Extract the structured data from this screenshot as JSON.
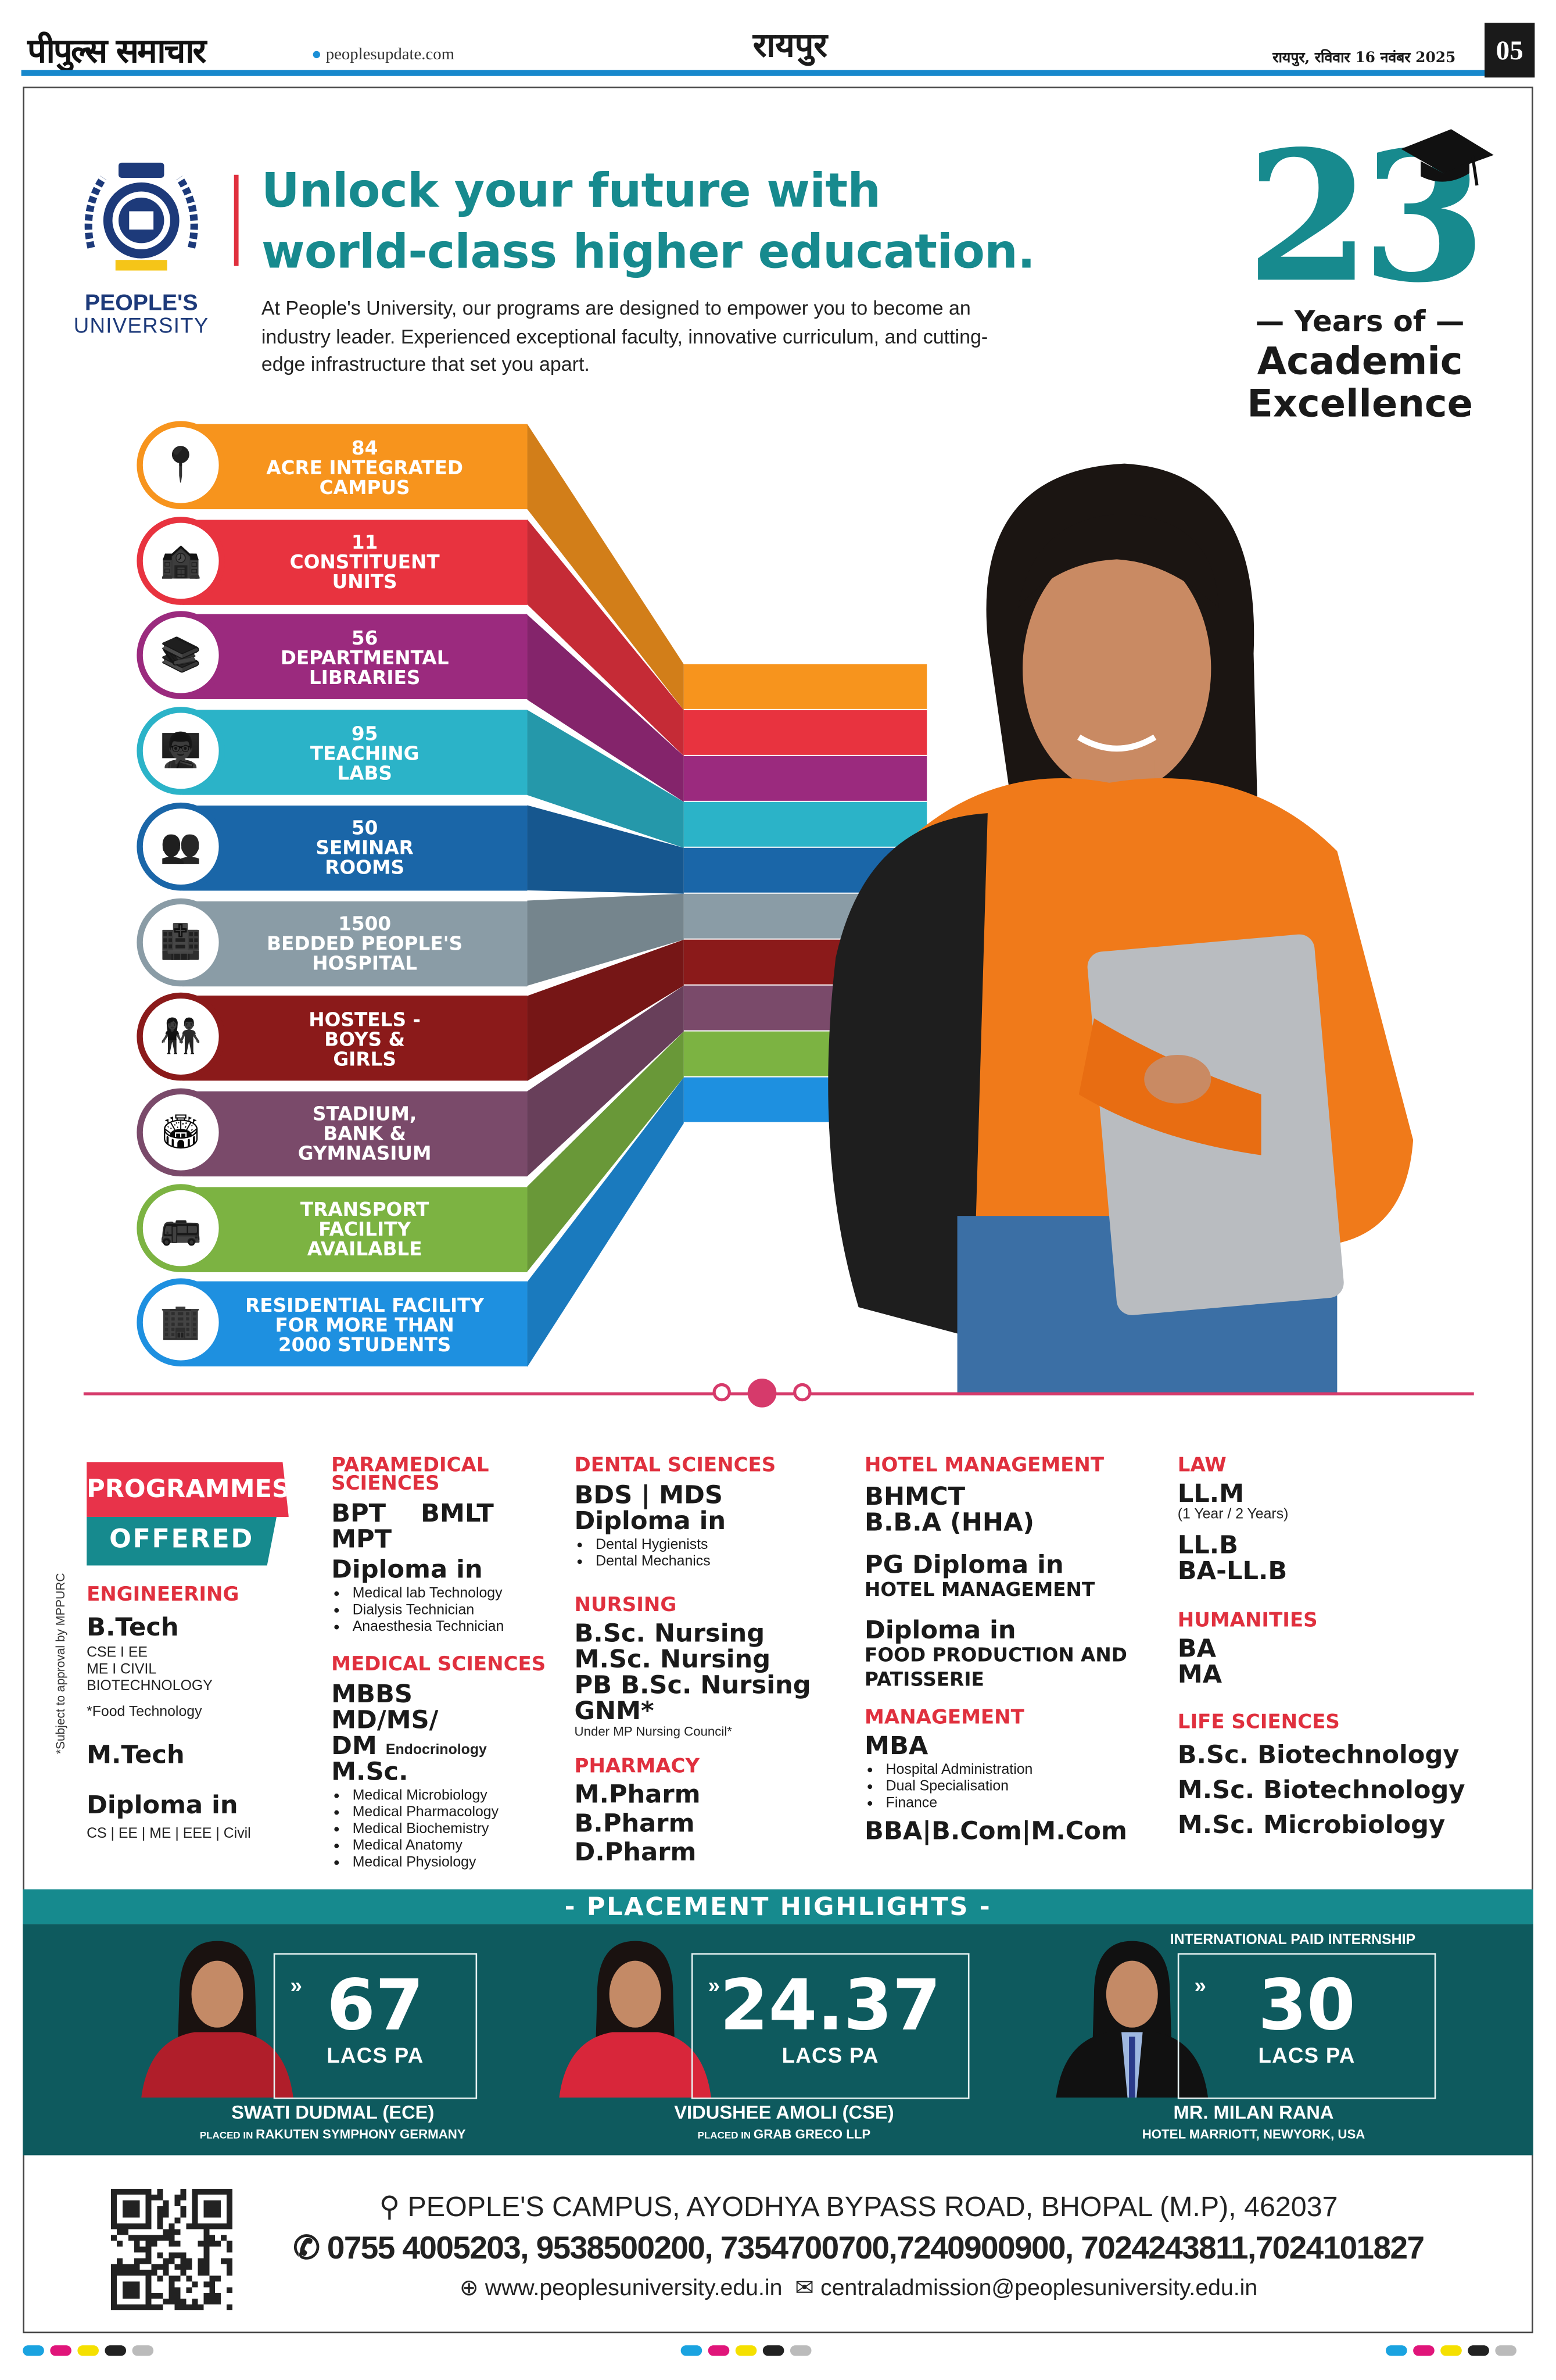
{
  "header": {
    "newspaper": "पीपुल्स समाचार",
    "website": "peoplesupdate.com",
    "city": "रायपुर",
    "date": "रायपुर, रविवार 16 नवंबर 2025",
    "page_number": "05",
    "accent": "#1788cc"
  },
  "university": {
    "name_line1": "PEOPLE'S",
    "name_line2": "UNIVERSITY",
    "seal_text": "BEYOND LIMIT"
  },
  "hero": {
    "title_line1": "Unlock your future with",
    "title_line2": "world-class higher education.",
    "intro": "At People's University, our programs are designed to empower you to become an industry leader. Experienced exceptional faculty, innovative curriculum, and cutting-edge infrastructure that set you apart.",
    "years": "23",
    "years_of": "— Years of —",
    "academic": "Academic",
    "excellence": "Excellence",
    "accent": "#178a8e"
  },
  "stats": [
    {
      "icon": "location-pin-icon",
      "lines": [
        "84",
        "ACRE INTEGRATED",
        "CAMPUS"
      ],
      "color": "#f7941d"
    },
    {
      "icon": "building-icon",
      "lines": [
        "11",
        "CONSTITUENT",
        "UNITS"
      ],
      "color": "#e8333f"
    },
    {
      "icon": "books-icon",
      "lines": [
        "56",
        "DEPARTMENTAL",
        "LIBRARIES"
      ],
      "color": "#9b2a7e"
    },
    {
      "icon": "teaching-icon",
      "lines": [
        "95",
        "TEACHING",
        "LABS"
      ],
      "color": "#2bb3c8"
    },
    {
      "icon": "seminar-icon",
      "lines": [
        "50",
        "SEMINAR",
        "ROOMS"
      ],
      "color": "#1a66a8"
    },
    {
      "icon": "hospital-icon",
      "lines": [
        "1500",
        "BEDDED PEOPLE'S",
        "HOSPITAL"
      ],
      "color": "#8a9ca6"
    },
    {
      "icon": "hostel-icon",
      "lines": [
        "HOSTELS -",
        "BOYS &",
        "GIRLS"
      ],
      "color": "#8b1a1a"
    },
    {
      "icon": "stadium-icon",
      "lines": [
        "STADIUM,",
        "BANK &",
        "GYMNASIUM"
      ],
      "color": "#7a4a6a"
    },
    {
      "icon": "bus-icon",
      "lines": [
        "TRANSPORT",
        "FACILITY",
        "AVAILABLE"
      ],
      "color": "#7cb342"
    },
    {
      "icon": "residence-icon",
      "lines": [
        "RESIDENTIAL FACILITY",
        "FOR MORE THAN",
        "2000 STUDENTS"
      ],
      "color": "#1e90e0"
    }
  ],
  "programmes": {
    "badge_top": "PROGRAMMES",
    "badge_bottom": "OFFERED",
    "approval_note": "*Subject to approval by MPPURC",
    "engineering": {
      "heading": "ENGINEERING",
      "btech": "B.Tech",
      "btech_branches": [
        "CSE I EE",
        "ME  I CIVIL",
        "BIOTECHNOLOGY"
      ],
      "food": "*Food Technology",
      "mtech": "M.Tech",
      "diploma": "Diploma in",
      "diploma_branches": "CS | EE | ME | EEE | Civil"
    },
    "paramedical": {
      "heading_line1": "PARAMEDICAL",
      "heading_line2": "SCIENCES",
      "line1": "BPT    BMLT",
      "line2": "MPT",
      "diploma": "Diploma in",
      "items": [
        "Medical lab Technology",
        "Dialysis Technician",
        "Anaesthesia Technician"
      ]
    },
    "medical": {
      "heading": "MEDICAL SCIENCES",
      "mbbs": "MBBS",
      "mdms": "MD/MS/",
      "dm": "DM",
      "dm_note": "Endocrinology",
      "msc": "M.Sc.",
      "items": [
        "Medical Microbiology",
        "Medical Pharmacology",
        "Medical Biochemistry",
        "Medical Anatomy",
        "Medical Physiology"
      ]
    },
    "dental": {
      "heading": "DENTAL SCIENCES",
      "line1": "BDS | MDS",
      "diploma": "Diploma in",
      "items": [
        "Dental Hygienists",
        "Dental Mechanics"
      ]
    },
    "nursing": {
      "heading": "NURSING",
      "items": [
        "B.Sc. Nursing",
        "M.Sc. Nursing",
        "PB B.Sc. Nursing",
        "GNM*"
      ],
      "note": "Under MP Nursing Council*"
    },
    "pharmacy": {
      "heading": "PHARMACY",
      "items": [
        "M.Pharm",
        "B.Pharm",
        "D.Pharm"
      ]
    },
    "hotel": {
      "heading": "HOTEL MANAGEMENT",
      "items": [
        "BHMCT",
        "B.B.A (HHA)"
      ],
      "pg": "PG Diploma in",
      "pg_sub": "HOTEL MANAGEMENT",
      "diploma": "Diploma in",
      "diploma_sub1": "FOOD PRODUCTION AND",
      "diploma_sub2": "PATISSERIE"
    },
    "management": {
      "heading": "MANAGEMENT",
      "mba": "MBA",
      "items": [
        "Hospital Administration",
        "Dual Specialisation",
        "Finance"
      ],
      "other": "BBA|B.Com|M.Com"
    },
    "law": {
      "heading": "LAW",
      "llm": "LL.M",
      "llm_note": "(1 Year / 2 Years)",
      "llb": "LL.B",
      "balb": "BA-LL.B"
    },
    "humanities": {
      "heading": "HUMANITIES",
      "items": [
        "BA",
        "MA"
      ]
    },
    "life": {
      "heading": "LIFE SCIENCES",
      "items": [
        "B.Sc. Biotechnology",
        "M.Sc. Biotechnology",
        "M.Sc. Microbiology"
      ]
    }
  },
  "placement": {
    "title": "- PLACEMENT HIGHLIGHTS -",
    "tag": "INTERNATIONAL PAID INTERNSHIP",
    "cards": [
      {
        "value": "67",
        "unit": "LACS PA",
        "name": "SWATI DUDMAL (ECE)",
        "placed_label": "PLACED IN",
        "company": "RAKUTEN SYMPHONY GERMANY"
      },
      {
        "value": "24.37",
        "unit": "LACS PA",
        "name": "VIDUSHEE AMOLI (CSE)",
        "placed_label": "PLACED IN",
        "company": "GRAB GRECO LLP"
      },
      {
        "value": "30",
        "unit": "LACS PA",
        "name": "MR. MILAN RANA",
        "placed_label": "",
        "company": "HOTEL MARRIOTT, NEWYORK, USA"
      }
    ]
  },
  "footer": {
    "address": "PEOPLE'S CAMPUS, AYODHYA BYPASS ROAD, BHOPAL (M.P), 462037",
    "phones": "0755 4005203, 9538500200, 7354700700,7240900900, 7024243811,7024101827",
    "website": "www.peoplesuniversity.edu.in",
    "email": "centraladmission@peoplesuniversity.edu.in"
  }
}
